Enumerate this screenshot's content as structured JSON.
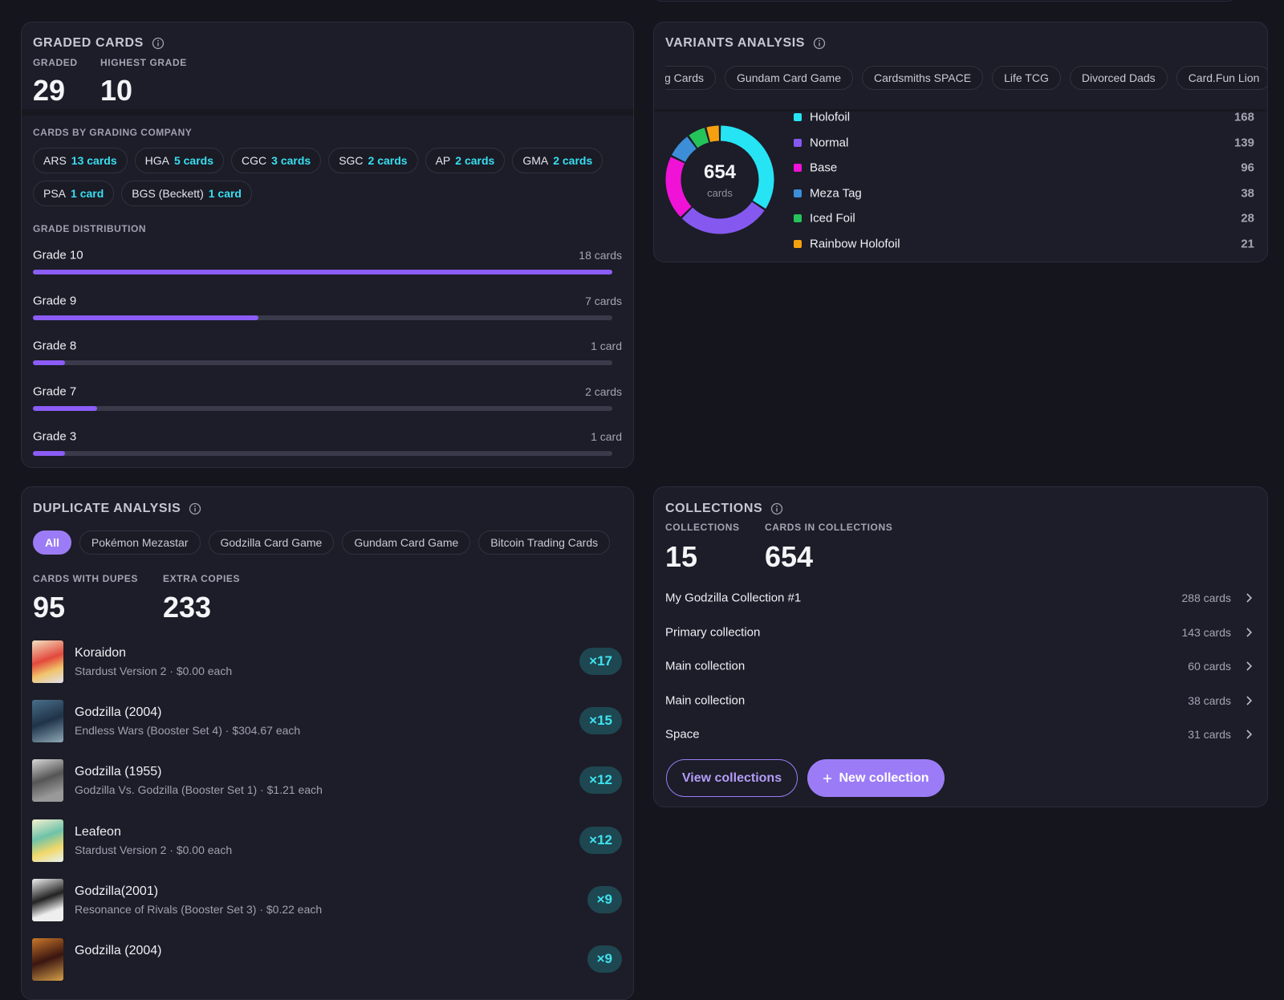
{
  "graded_cards": {
    "title": "GRADED CARDS",
    "stats": [
      {
        "label": "GRADED",
        "value": 29
      },
      {
        "label": "HIGHEST GRADE",
        "value": 10
      }
    ],
    "companies_title": "CARDS BY GRADING COMPANY",
    "companies": [
      {
        "name": "ARS",
        "count": "13 cards"
      },
      {
        "name": "HGA",
        "count": "5 cards"
      },
      {
        "name": "CGC",
        "count": "3 cards"
      },
      {
        "name": "SGC",
        "count": "2 cards"
      },
      {
        "name": "AP",
        "count": "2 cards"
      },
      {
        "name": "GMA",
        "count": "2 cards"
      },
      {
        "name": "PSA",
        "count": "1 card"
      },
      {
        "name": "BGS (Beckett)",
        "count": "1 card"
      }
    ],
    "distribution_title": "GRADE DISTRIBUTION",
    "grades": [
      {
        "grade": "Grade 10",
        "count_label": "18 cards",
        "count": 18
      },
      {
        "grade": "Grade 9",
        "count_label": "7 cards",
        "count": 7
      },
      {
        "grade": "Grade 8",
        "count_label": "1 card",
        "count": 1
      },
      {
        "grade": "Grade 7",
        "count_label": "2 cards",
        "count": 2
      },
      {
        "grade": "Grade 3",
        "count_label": "1 card",
        "count": 1
      }
    ]
  },
  "variants_analysis": {
    "title": "VARIANTS ANALYSIS",
    "tabs": [
      "g Cards",
      "Gundam Card Game",
      "Cardsmiths SPACE",
      "Life TCG",
      "Divorced Dads",
      "Card.Fun Lion"
    ],
    "total": 654,
    "total_unit": "cards",
    "variants": [
      {
        "name": "Holofoil",
        "color": "#27e4f4",
        "count": 168
      },
      {
        "name": "Normal",
        "color": "#8559f0",
        "count": 139
      },
      {
        "name": "Base",
        "color": "#f012d6",
        "count": 96
      },
      {
        "name": "Meza Tag",
        "color": "#3c8ed8",
        "count": 38
      },
      {
        "name": "Iced Foil",
        "color": "#25c45a",
        "count": 28
      },
      {
        "name": "Rainbow Holofoil",
        "color": "#f5a00f",
        "count": 21
      }
    ]
  },
  "duplicate_analysis": {
    "title": "DUPLICATE ANALYSIS",
    "tabs": [
      "All",
      "Pokémon Mezastar",
      "Godzilla Card Game",
      "Gundam Card Game",
      "Bitcoin Trading Cards"
    ],
    "active_tab": 0,
    "stats": [
      {
        "label": "CARDS WITH DUPES",
        "value": 95
      },
      {
        "label": "EXTRA COPIES",
        "value": 233
      }
    ],
    "items": [
      {
        "name": "Koraidon",
        "detail": "Stardust Version 2 · $0.00 each",
        "copies": "×17"
      },
      {
        "name": "Godzilla (2004)",
        "detail": "Endless Wars (Booster Set 4) · $304.67 each",
        "copies": "×15"
      },
      {
        "name": "Godzilla (1955)",
        "detail": "Godzilla Vs. Godzilla (Booster Set 1) · $1.21 each",
        "copies": "×12"
      },
      {
        "name": "Leafeon",
        "detail": "Stardust Version 2 · $0.00 each",
        "copies": "×12"
      },
      {
        "name": "Godzilla(2001)",
        "detail": "Resonance of Rivals (Booster Set 3) · $0.22 each",
        "copies": "×9"
      },
      {
        "name": "Godzilla (2004)",
        "copies": "×9"
      }
    ]
  },
  "collections": {
    "title": "COLLECTIONS",
    "stats": [
      {
        "label": "COLLECTIONS",
        "value": 15
      },
      {
        "label": "CARDS IN COLLECTIONS",
        "value": 654
      }
    ],
    "items": [
      {
        "name": "My Godzilla Collection #1",
        "count": "288 cards"
      },
      {
        "name": "Primary collection",
        "count": "143 cards"
      },
      {
        "name": "Main collection",
        "count": "60 cards"
      },
      {
        "name": "Main collection",
        "count": "38 cards"
      },
      {
        "name": "Space",
        "count": "31 cards"
      }
    ],
    "buttons": [
      "View collections",
      "New collection"
    ]
  }
}
